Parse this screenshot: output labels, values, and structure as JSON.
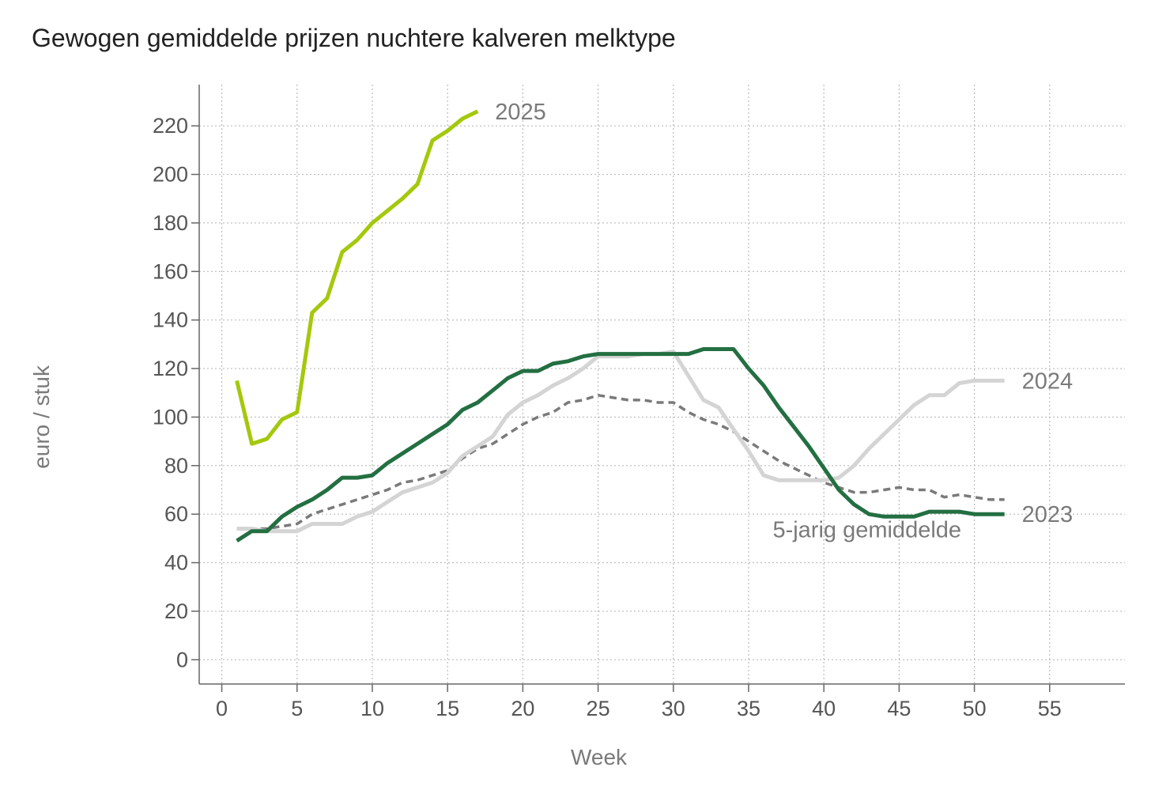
{
  "chart_data": {
    "type": "line",
    "title": "Gewogen gemiddelde prijzen nuchtere kalveren melktype",
    "xlabel": "Week",
    "ylabel": "euro / stuk",
    "xlim": [
      -1.5,
      60
    ],
    "ylim": [
      -10,
      237
    ],
    "x_ticks": [
      "0",
      "5",
      "10",
      "15",
      "20",
      "25",
      "30",
      "35",
      "40",
      "45",
      "50",
      "55"
    ],
    "y_ticks": [
      "0",
      "20",
      "40",
      "60",
      "80",
      "100",
      "120",
      "140",
      "160",
      "180",
      "200",
      "220"
    ],
    "grid": true,
    "colors": {
      "2025": "#a4c80c",
      "2024": "#d4d4d4",
      "2023": "#236f42",
      "avg": "#7a7a7a",
      "grid": "#bbbbbb",
      "axis": "#666666"
    },
    "series": [
      {
        "name": "2025",
        "key": "s2025",
        "x": [
          1,
          2,
          3,
          4,
          5,
          6,
          7,
          8,
          9,
          10,
          11,
          12,
          13,
          14,
          15,
          16,
          17
        ],
        "values": [
          115,
          89,
          91,
          99,
          102,
          143,
          149,
          168,
          173,
          180,
          185,
          190,
          196,
          214,
          218,
          223,
          226
        ]
      },
      {
        "name": "2024",
        "key": "s2024",
        "x": [
          1,
          2,
          3,
          4,
          5,
          6,
          7,
          8,
          9,
          10,
          11,
          12,
          13,
          14,
          15,
          16,
          17,
          18,
          19,
          20,
          21,
          22,
          23,
          24,
          25,
          26,
          27,
          28,
          29,
          30,
          31,
          32,
          33,
          34,
          35,
          36,
          37,
          38,
          39,
          40,
          41,
          42,
          43,
          44,
          45,
          46,
          47,
          48,
          49,
          50,
          51,
          52
        ],
        "values": [
          54,
          54,
          53,
          53,
          53,
          56,
          56,
          56,
          59,
          61,
          65,
          69,
          71,
          73,
          77,
          84,
          88,
          92,
          101,
          106,
          109,
          113,
          116,
          120,
          125,
          125,
          125,
          126,
          126,
          127,
          117,
          107,
          104,
          95,
          86,
          76,
          74,
          74,
          74,
          74,
          75,
          80,
          87,
          93,
          99,
          105,
          109,
          109,
          114,
          115,
          115,
          115
        ]
      },
      {
        "name": "2023",
        "key": "s2023",
        "x": [
          1,
          2,
          3,
          4,
          5,
          6,
          7,
          8,
          9,
          10,
          11,
          12,
          13,
          14,
          15,
          16,
          17,
          18,
          19,
          20,
          21,
          22,
          23,
          24,
          25,
          26,
          27,
          28,
          29,
          30,
          31,
          32,
          33,
          34,
          35,
          36,
          37,
          38,
          39,
          40,
          41,
          42,
          43,
          44,
          45,
          46,
          47,
          48,
          49,
          50,
          51,
          52
        ],
        "values": [
          49,
          53,
          53,
          59,
          63,
          66,
          70,
          75,
          75,
          76,
          81,
          85,
          89,
          93,
          97,
          103,
          106,
          111,
          116,
          119,
          119,
          122,
          123,
          125,
          126,
          126,
          126,
          126,
          126,
          126,
          126,
          128,
          128,
          128,
          120,
          113,
          104,
          96,
          88,
          79,
          70,
          64,
          60,
          59,
          59,
          59,
          61,
          61,
          61,
          60,
          60,
          60
        ]
      },
      {
        "name": "5-jarig gemiddelde",
        "key": "avg",
        "x": [
          1,
          2,
          3,
          4,
          5,
          6,
          7,
          8,
          9,
          10,
          11,
          12,
          13,
          14,
          15,
          16,
          17,
          18,
          19,
          20,
          21,
          22,
          23,
          24,
          25,
          26,
          27,
          28,
          29,
          30,
          31,
          32,
          33,
          34,
          35,
          36,
          37,
          38,
          39,
          40,
          41,
          42,
          43,
          44,
          45,
          46,
          47,
          48,
          49,
          50,
          51,
          52
        ],
        "values": [
          54,
          54,
          54,
          55,
          56,
          60,
          62,
          64,
          66,
          68,
          70,
          73,
          74,
          76,
          78,
          83,
          87,
          89,
          93,
          97,
          100,
          102,
          106,
          107,
          109,
          108,
          107,
          107,
          106,
          106,
          102,
          99,
          97,
          94,
          90,
          86,
          82,
          79,
          76,
          73,
          71,
          69,
          69,
          70,
          71,
          70,
          70,
          67,
          68,
          67,
          66,
          66
        ]
      }
    ],
    "labels": {
      "s2025": "2025",
      "s2024": "2024",
      "s2023": "2023",
      "avg": "5-jarig gemiddelde"
    }
  }
}
